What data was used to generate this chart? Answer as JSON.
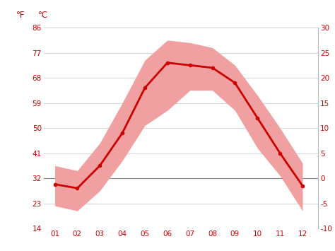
{
  "months": [
    1,
    2,
    3,
    4,
    5,
    6,
    7,
    8,
    9,
    10,
    11,
    12
  ],
  "month_labels": [
    "01",
    "02",
    "03",
    "04",
    "05",
    "06",
    "07",
    "08",
    "09",
    "10",
    "11",
    "12"
  ],
  "mean_temp_c": [
    -1.2,
    -2.0,
    2.5,
    9.0,
    18.0,
    23.0,
    22.5,
    22.0,
    19.0,
    12.0,
    5.0,
    -1.5
  ],
  "max_temp_c": [
    2.5,
    1.5,
    7.0,
    15.0,
    23.5,
    27.5,
    27.0,
    26.0,
    22.5,
    16.5,
    10.0,
    3.0
  ],
  "min_temp_c": [
    -5.5,
    -6.5,
    -2.5,
    3.5,
    10.5,
    13.5,
    17.5,
    17.5,
    13.5,
    6.0,
    0.5,
    -6.5
  ],
  "line_color": "#cc0000",
  "band_color": "#f0a0a0",
  "zero_line_color": "#888888",
  "grid_color": "#d8d8d8",
  "tick_color": "#cc0000",
  "bg_color": "#ffffff",
  "ylim_c": [
    -10,
    30
  ],
  "yticks_c": [
    -10,
    -5,
    0,
    5,
    10,
    15,
    20,
    25,
    30
  ],
  "yticks_f": [
    14,
    23,
    32,
    41,
    50,
    59,
    68,
    77,
    86
  ],
  "ylabel_c": "°C",
  "ylabel_f": "°F"
}
